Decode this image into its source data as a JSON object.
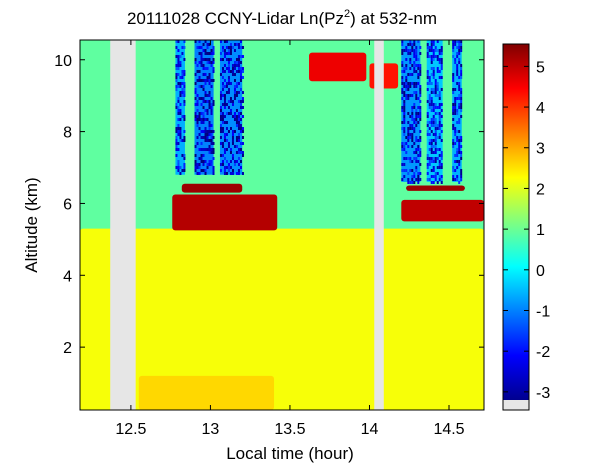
{
  "chart_data": {
    "type": "heatmap",
    "title": "20111028 CCNY-Lidar Ln(Pz",
    "title_superscript": "2",
    "title_suffix": ") at 532-nm",
    "xlabel": "Local time (hour)",
    "ylabel": "Altitude (km)",
    "xlim": [
      12.18,
      14.72
    ],
    "ylim": [
      0.25,
      10.55
    ],
    "xticks": [
      12.5,
      13,
      13.5,
      14,
      14.5
    ],
    "xtick_labels": [
      "12.5",
      "13",
      "13.5",
      "14",
      "14.5"
    ],
    "yticks": [
      2,
      4,
      6,
      8,
      10
    ],
    "ytick_labels": [
      "2",
      "4",
      "6",
      "8",
      "10"
    ],
    "colorbar": {
      "range": [
        -3.2,
        5.55
      ],
      "ticks": [
        -3,
        -2,
        -1,
        0,
        1,
        2,
        3,
        4,
        5
      ],
      "tick_labels": [
        "-3",
        "-2",
        "-1",
        "0",
        "1",
        "2",
        "3",
        "4",
        "5"
      ],
      "colormap": "jet",
      "nodata_color": "#e6e6e6"
    },
    "background_value": 0.9,
    "nodata_gaps": [
      [
        12.37,
        12.53
      ],
      [
        14.03,
        14.09
      ]
    ],
    "layers": [
      {
        "name": "boundary-layer",
        "x": [
          12.18,
          14.72
        ],
        "y": [
          0.25,
          5.3
        ],
        "value": 2.2
      },
      {
        "name": "near-surface",
        "x": [
          12.55,
          13.4
        ],
        "y": [
          0.25,
          1.2
        ],
        "value": 2.6
      },
      {
        "name": "cloud-base-1",
        "x": [
          12.76,
          13.42
        ],
        "y": [
          5.25,
          6.25
        ],
        "value": 5.1
      },
      {
        "name": "cloud-top-1",
        "x": [
          12.82,
          13.2
        ],
        "y": [
          6.3,
          6.55
        ],
        "value": 5.3
      },
      {
        "name": "cloud-base-2",
        "x": [
          14.2,
          14.72
        ],
        "y": [
          5.5,
          6.1
        ],
        "value": 5.0
      },
      {
        "name": "cloud-top-2",
        "x": [
          14.23,
          14.6
        ],
        "y": [
          6.35,
          6.5
        ],
        "value": 5.3
      },
      {
        "name": "high-cloud",
        "x": [
          13.62,
          13.98
        ],
        "y": [
          9.4,
          10.2
        ],
        "value": 4.6
      },
      {
        "name": "high-cloud-2",
        "x": [
          14.0,
          14.18
        ],
        "y": [
          9.2,
          9.9
        ],
        "value": 4.3
      }
    ],
    "noisy_columns": [
      {
        "x": [
          12.78,
          12.84
        ],
        "y": [
          6.8,
          10.55
        ],
        "value": -2.2
      },
      {
        "x": [
          12.9,
          13.02
        ],
        "y": [
          6.8,
          10.55
        ],
        "value": -2.6
      },
      {
        "x": [
          13.06,
          13.2
        ],
        "y": [
          6.8,
          10.55
        ],
        "value": -2.5
      },
      {
        "x": [
          14.2,
          14.32
        ],
        "y": [
          6.6,
          10.55
        ],
        "value": -2.4
      },
      {
        "x": [
          14.36,
          14.46
        ],
        "y": [
          6.6,
          10.55
        ],
        "value": -2.0
      },
      {
        "x": [
          14.52,
          14.58
        ],
        "y": [
          6.6,
          10.55
        ],
        "value": -2.2
      }
    ]
  }
}
